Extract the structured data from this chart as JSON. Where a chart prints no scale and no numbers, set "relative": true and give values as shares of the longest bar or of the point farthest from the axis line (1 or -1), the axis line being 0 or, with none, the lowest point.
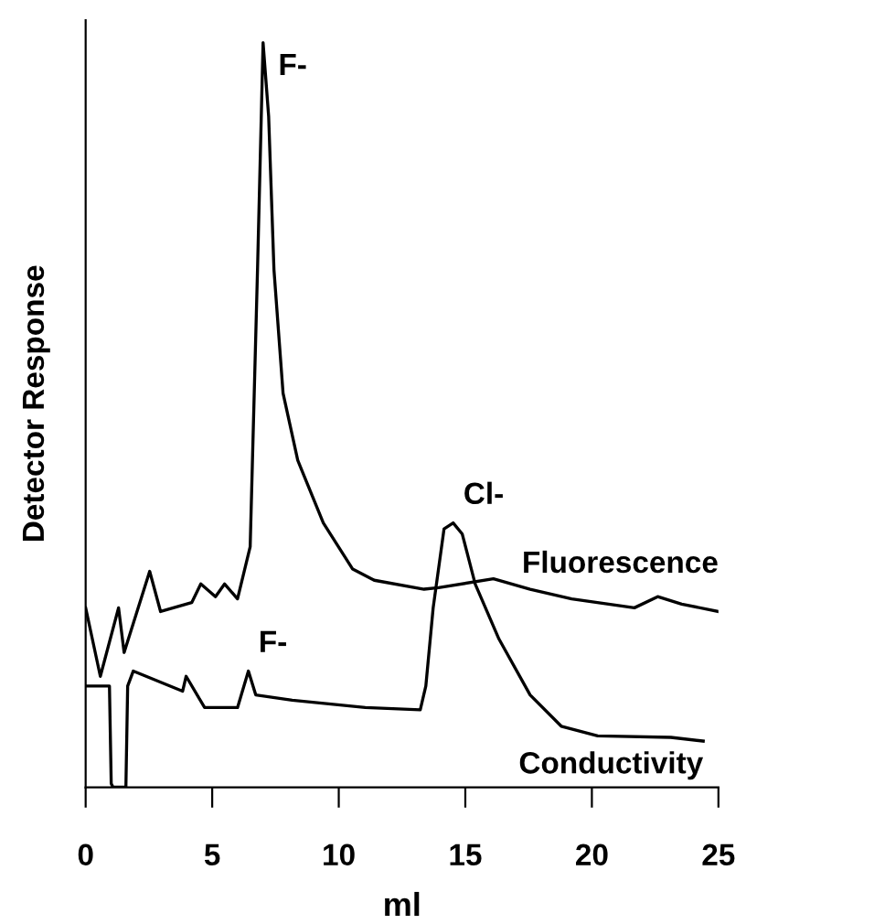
{
  "chart_data": {
    "type": "line",
    "relative": true,
    "xlabel": "ml",
    "ylabel": "Detector Response",
    "xlim": [
      0,
      25
    ],
    "xticks": [
      0,
      5,
      10,
      15,
      20,
      25
    ],
    "grid": false,
    "legend": false,
    "marker": "none",
    "line_style": "solid",
    "series": [
      {
        "name": "Fluorescence",
        "color": "#000000",
        "x": [
          0,
          0.58,
          1.3,
          1.52,
          2.53,
          2.96,
          4.19,
          4.55,
          5.13,
          5.49,
          6.0,
          6.5,
          6.79,
          7.01,
          7.23,
          7.44,
          7.8,
          8.38,
          9.39,
          10.55,
          11.4,
          13.37,
          13.94,
          16.11,
          17.56,
          19.2,
          21.68,
          22.6,
          23.55,
          25.0
        ],
        "values": [
          0.241,
          0.149,
          0.241,
          0.181,
          0.29,
          0.236,
          0.248,
          0.273,
          0.256,
          0.273,
          0.253,
          0.323,
          0.695,
          1.0,
          0.901,
          0.695,
          0.529,
          0.439,
          0.355,
          0.293,
          0.278,
          0.266,
          0.268,
          0.28,
          0.266,
          0.253,
          0.241,
          0.256,
          0.246,
          0.236
        ]
      },
      {
        "name": "Conductivity",
        "color": "#000000",
        "x": [
          0,
          0.94,
          1.01,
          1.08,
          1.59,
          1.66,
          1.88,
          3.83,
          3.97,
          4.7,
          6.0,
          6.43,
          6.72,
          8.16,
          11.05,
          13.22,
          13.44,
          13.73,
          14.16,
          14.52,
          14.88,
          15.39,
          16.33,
          17.56,
          18.79,
          20.23,
          23.12,
          24.4
        ],
        "values": [
          0.136,
          0.136,
          0.005,
          0.0,
          0.0,
          0.136,
          0.156,
          0.129,
          0.149,
          0.107,
          0.107,
          0.156,
          0.124,
          0.117,
          0.107,
          0.104,
          0.136,
          0.241,
          0.347,
          0.355,
          0.34,
          0.273,
          0.199,
          0.124,
          0.082,
          0.069,
          0.067,
          0.062
        ]
      }
    ],
    "annotations": [
      {
        "text": "F-",
        "x": 7.01,
        "y": 1.0
      },
      {
        "text": "Cl-",
        "x": 14.52,
        "y": 0.355
      },
      {
        "text": "F-",
        "x": 6.43,
        "y": 0.156
      }
    ]
  }
}
